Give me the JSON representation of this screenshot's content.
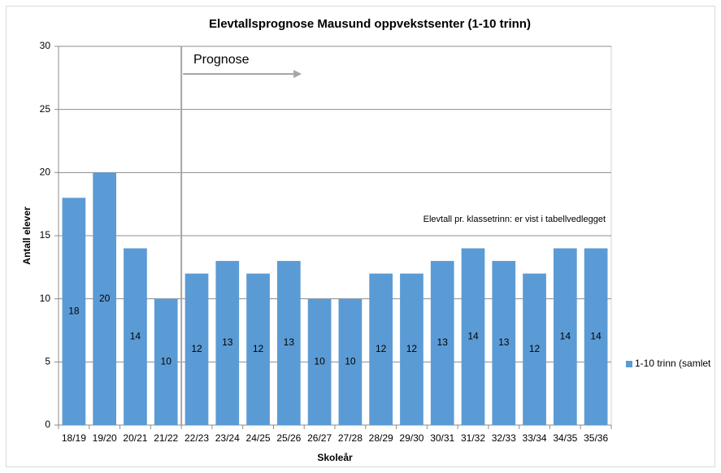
{
  "chart_data": {
    "type": "bar",
    "title": "Elevtallsprognose Mausund oppvekstsenter (1-10 trinn)",
    "x_label": "Skoleår",
    "y_label": "Antall elever",
    "categories": [
      "18/19",
      "19/20",
      "20/21",
      "21/22",
      "22/23",
      "23/24",
      "24/25",
      "25/26",
      "26/27",
      "27/28",
      "28/29",
      "29/30",
      "30/31",
      "31/32",
      "32/33",
      "33/34",
      "34/35",
      "35/36"
    ],
    "series": [
      {
        "name": "1-10 trinn (samlet",
        "color": "#5b9bd5",
        "values": [
          18,
          20,
          14,
          10,
          12,
          13,
          12,
          13,
          10,
          10,
          12,
          12,
          13,
          14,
          13,
          12,
          14,
          14
        ]
      }
    ],
    "ylim": [
      0,
      30
    ],
    "yticks": [
      0,
      5,
      10,
      15,
      20,
      25,
      30
    ],
    "grid": true,
    "legend": "right",
    "annotations": [
      "Prognose",
      "Elevtall pr. klassetrinn: er vist i tabellvedlegget"
    ]
  }
}
